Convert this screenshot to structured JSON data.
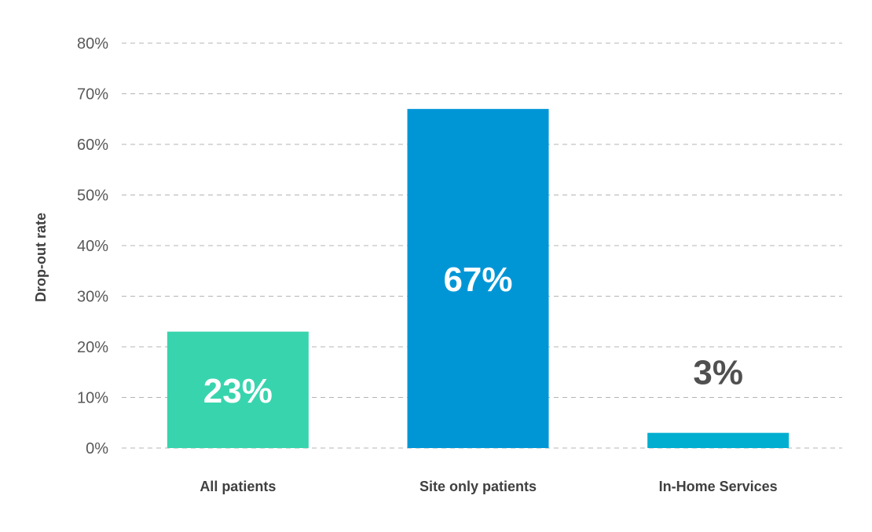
{
  "chart_data": {
    "type": "bar",
    "title": "",
    "xlabel": "",
    "ylabel": "Drop-out rate",
    "categories": [
      "All patients",
      "Site only patients",
      "In-Home Services"
    ],
    "values": [
      23,
      67,
      3
    ],
    "data_labels": [
      "23%",
      "67%",
      "3%"
    ],
    "bar_colors": [
      "#38d4ae",
      "#0096d6",
      "#00aed0"
    ],
    "data_label_colors": [
      "#ffffff",
      "#ffffff",
      "#505050"
    ],
    "ylim": [
      0,
      80
    ],
    "yticks": [
      0,
      10,
      20,
      30,
      40,
      50,
      60,
      70,
      80
    ],
    "ytick_labels": [
      "0%",
      "10%",
      "20%",
      "30%",
      "40%",
      "50%",
      "60%",
      "70%",
      "80%"
    ],
    "grid": true,
    "grid_style": "dashed",
    "legend": "none"
  }
}
